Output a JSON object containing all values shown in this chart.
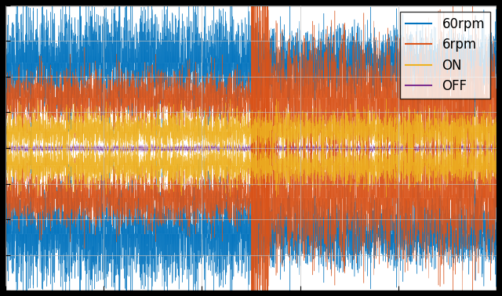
{
  "legend_labels": [
    "60rpm",
    "6rpm",
    "ON",
    "OFF"
  ],
  "line_colors": [
    "#0072BD",
    "#D95319",
    "#EDB120",
    "#7E2F8E"
  ],
  "background_color": "#ffffff",
  "outer_background": "#000000",
  "grid_color": "#c0c0c0",
  "n_points": 5000,
  "seed": 42,
  "figsize": [
    6.4,
    3.78
  ],
  "dpi": 100,
  "legend_fontsize": 12,
  "ylim": [
    -1.0,
    1.0
  ],
  "seg_split": 0.5
}
